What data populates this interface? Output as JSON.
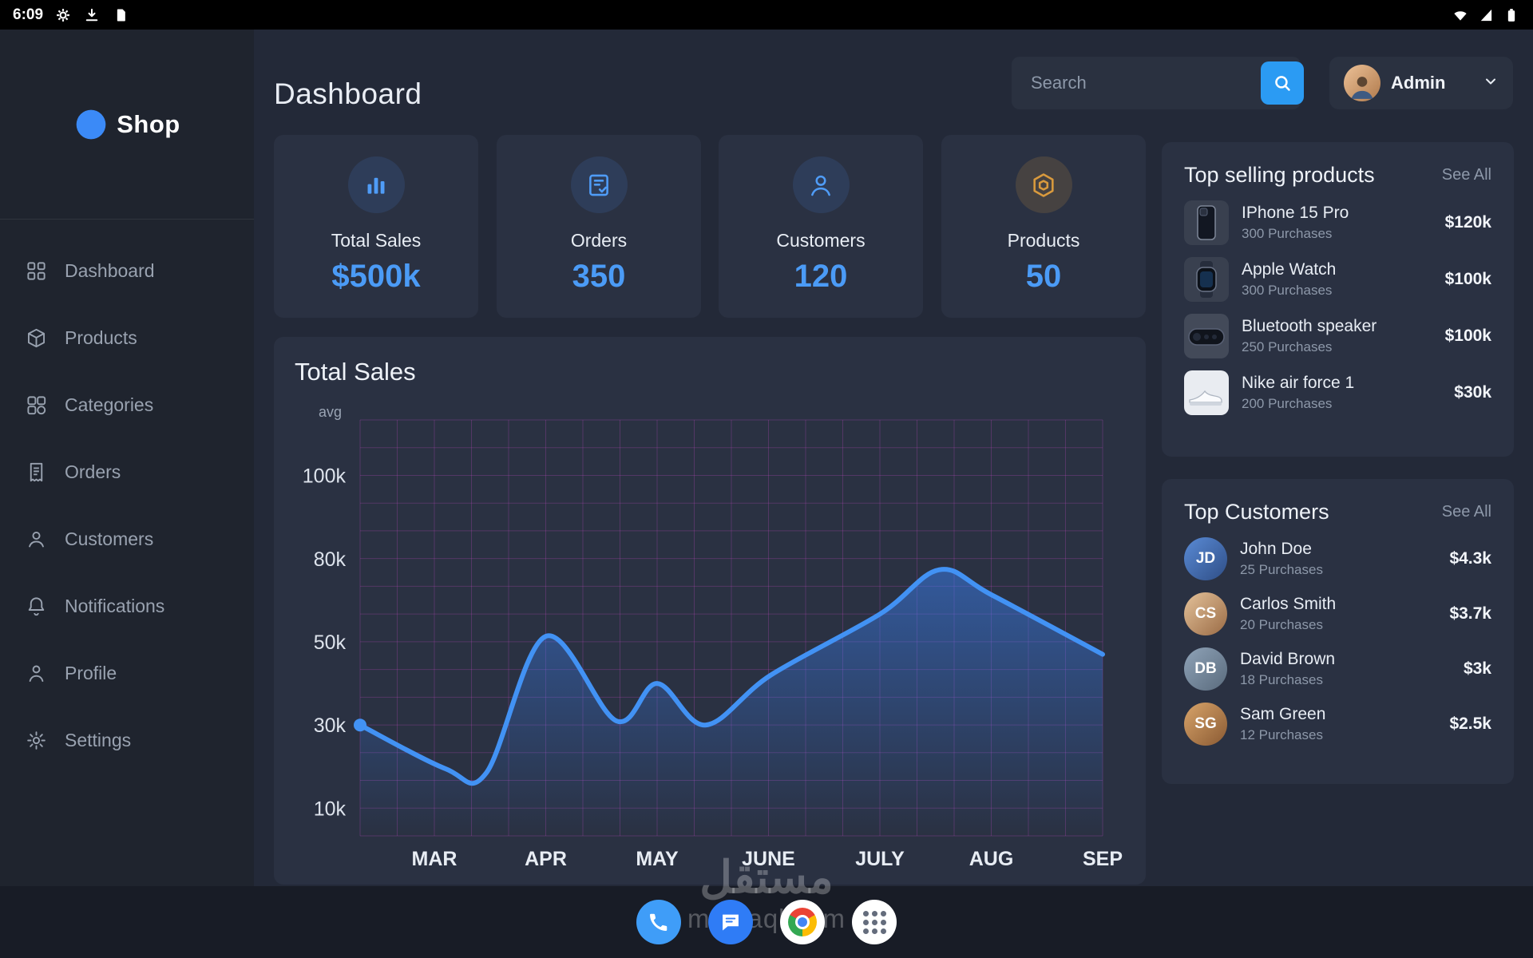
{
  "status_bar": {
    "time": "6:09"
  },
  "sidebar": {
    "logo_text": "Shop",
    "items": [
      {
        "label": "Dashboard"
      },
      {
        "label": "Products"
      },
      {
        "label": "Categories"
      },
      {
        "label": "Orders"
      },
      {
        "label": "Customers"
      },
      {
        "label": "Notifications"
      },
      {
        "label": "Profile"
      },
      {
        "label": "Settings"
      }
    ]
  },
  "header": {
    "title": "Dashboard",
    "search_placeholder": "Search",
    "admin_label": "Admin"
  },
  "stats": {
    "cards": [
      {
        "label": "Total Sales",
        "value": "$500k",
        "icon": "bar-chart-icon",
        "accent": "#4f9cf7"
      },
      {
        "label": "Orders",
        "value": "350",
        "icon": "order-check-icon",
        "accent": "#4f9cf7"
      },
      {
        "label": "Customers",
        "value": "120",
        "icon": "customer-icon",
        "accent": "#4f9cf7"
      },
      {
        "label": "Products",
        "value": "50",
        "icon": "product-box-icon",
        "accent": "#d99a3d"
      }
    ]
  },
  "chart_data": {
    "type": "line",
    "title": "Total Sales",
    "corner_label": "avg",
    "x_ticks": [
      "MAR",
      "APR",
      "MAY",
      "JUNE",
      "JULY",
      "AUG",
      "SEP"
    ],
    "y_ticks": [
      {
        "label": "100k",
        "value": 100
      },
      {
        "label": "80k",
        "value": 80
      },
      {
        "label": "50k",
        "value": 50
      },
      {
        "label": "30k",
        "value": 30
      },
      {
        "label": "10k",
        "value": 10
      }
    ],
    "y_axis_note": "ticks evenly spaced (non-linear axis), values in thousands",
    "series": [
      {
        "name": "Total Sales",
        "points": [
          [
            0,
            30
          ],
          [
            0.115,
            19.5
          ],
          [
            0.17,
            18.5
          ],
          [
            0.25,
            52
          ],
          [
            0.345,
            31
          ],
          [
            0.4,
            40
          ],
          [
            0.465,
            30
          ],
          [
            0.553,
            42
          ],
          [
            0.7,
            60
          ],
          [
            0.78,
            76
          ],
          [
            0.85,
            67
          ],
          [
            1,
            47
          ]
        ]
      }
    ],
    "approx_month_values_k": {
      "MAR": 22,
      "APR": 52,
      "MAY": 40,
      "JUNE": 42,
      "JULY": 60,
      "AUG": 67,
      "SEP": 47
    },
    "line_color": "#4292f4",
    "fill_color": "#3b82f6",
    "grid_color": "rgba(197,75,197,0.27)",
    "grid": true,
    "legend": false
  },
  "top_products": {
    "title": "Top selling products",
    "see_all": "See All",
    "items": [
      {
        "name": "IPhone 15 Pro",
        "purchases": "300 Purchases",
        "price": "$120k",
        "icon": "iphone-thumb"
      },
      {
        "name": "Apple Watch",
        "purchases": "300 Purchases",
        "price": "$100k",
        "icon": "watch-thumb"
      },
      {
        "name": "Bluetooth speaker",
        "purchases": "250 Purchases",
        "price": "$100k",
        "icon": "speaker-thumb"
      },
      {
        "name": "Nike air force 1",
        "purchases": "200 Purchases",
        "price": "$30k",
        "icon": "shoe-thumb"
      }
    ]
  },
  "top_customers": {
    "title": "Top Customers",
    "see_all": "See All",
    "items": [
      {
        "name": "John Doe",
        "purchases": "25 Purchases",
        "price": "$4.3k",
        "initials": "JD"
      },
      {
        "name": "Carlos Smith",
        "purchases": "20 Purchases",
        "price": "$3.7k",
        "initials": "CS"
      },
      {
        "name": "David Brown",
        "purchases": "18 Purchases",
        "price": "$3k",
        "initials": "DB"
      },
      {
        "name": "Sam Green",
        "purchases": "12 Purchases",
        "price": "$2.5k",
        "initials": "SG"
      }
    ]
  },
  "dock": {
    "items": [
      {
        "name": "phone"
      },
      {
        "name": "messages"
      },
      {
        "name": "chrome"
      },
      {
        "name": "app-drawer"
      }
    ]
  },
  "watermark": {
    "line1": "مستقل",
    "line2": "mostaql.com"
  },
  "colors": {
    "accent_blue": "#4f9cf7",
    "accent_orange": "#d99a3d",
    "card_bg": "#2a3142",
    "main_bg": "#232938",
    "sidebar_bg": "#1f242e",
    "search_button": "#2b9bf3",
    "status_bar_bg": "#000000"
  }
}
